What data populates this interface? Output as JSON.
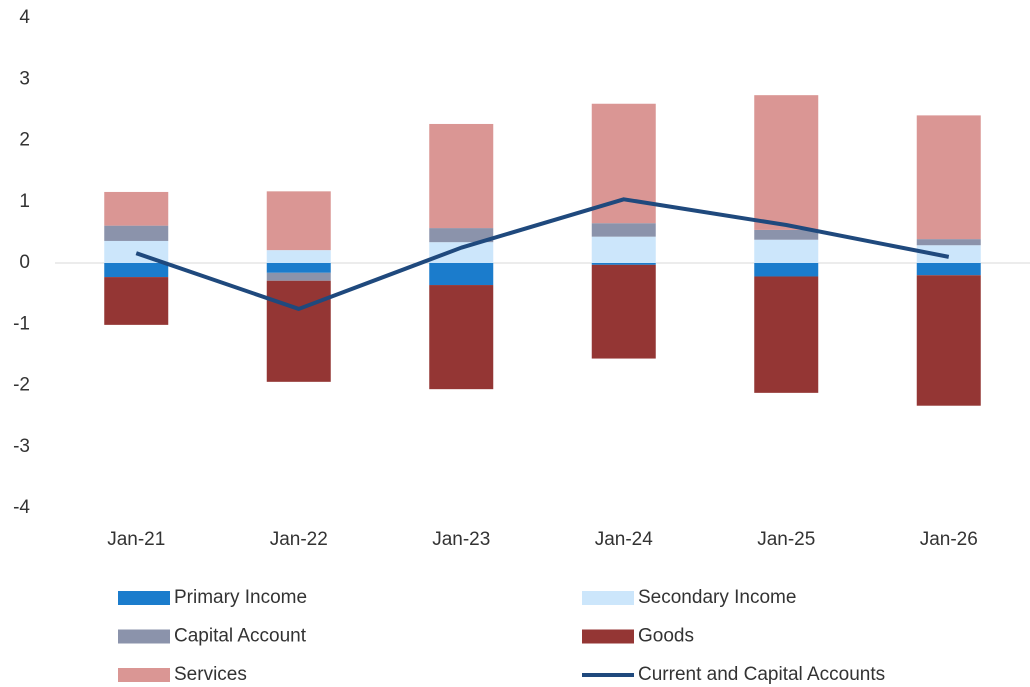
{
  "chart_data": {
    "type": "bar",
    "categories": [
      "Jan-21",
      "Jan-22",
      "Jan-23",
      "Jan-24",
      "Jan-25",
      "Jan-26"
    ],
    "series": [
      {
        "name": "Primary Income",
        "color": "#1b7ccc",
        "values": [
          -0.23,
          -0.16,
          -0.36,
          -0.03,
          -0.22,
          -0.2
        ]
      },
      {
        "name": "Secondary Income",
        "color": "#cce6fb",
        "values": [
          0.36,
          0.21,
          0.34,
          0.43,
          0.38,
          0.29
        ]
      },
      {
        "name": "Capital Account",
        "color": "#8b93ab",
        "values": [
          0.25,
          -0.13,
          0.23,
          0.22,
          0.16,
          0.1
        ]
      },
      {
        "name": "Goods",
        "color": "#943634",
        "values": [
          -0.78,
          -1.65,
          -1.7,
          -1.53,
          -1.9,
          -2.13
        ]
      },
      {
        "name": "Services",
        "color": "#da9694",
        "values": [
          0.55,
          0.96,
          1.7,
          1.95,
          2.2,
          2.02
        ]
      },
      {
        "name": "Current and Capital Accounts",
        "color": "#1f497d",
        "type": "line",
        "values": [
          0.16,
          -0.75,
          0.25,
          1.04,
          0.62,
          0.1
        ]
      }
    ],
    "ylim": [
      -4,
      4
    ],
    "yticks": [
      -4,
      -3,
      -2,
      -1,
      0,
      1,
      2,
      3,
      4
    ],
    "grid": false
  }
}
